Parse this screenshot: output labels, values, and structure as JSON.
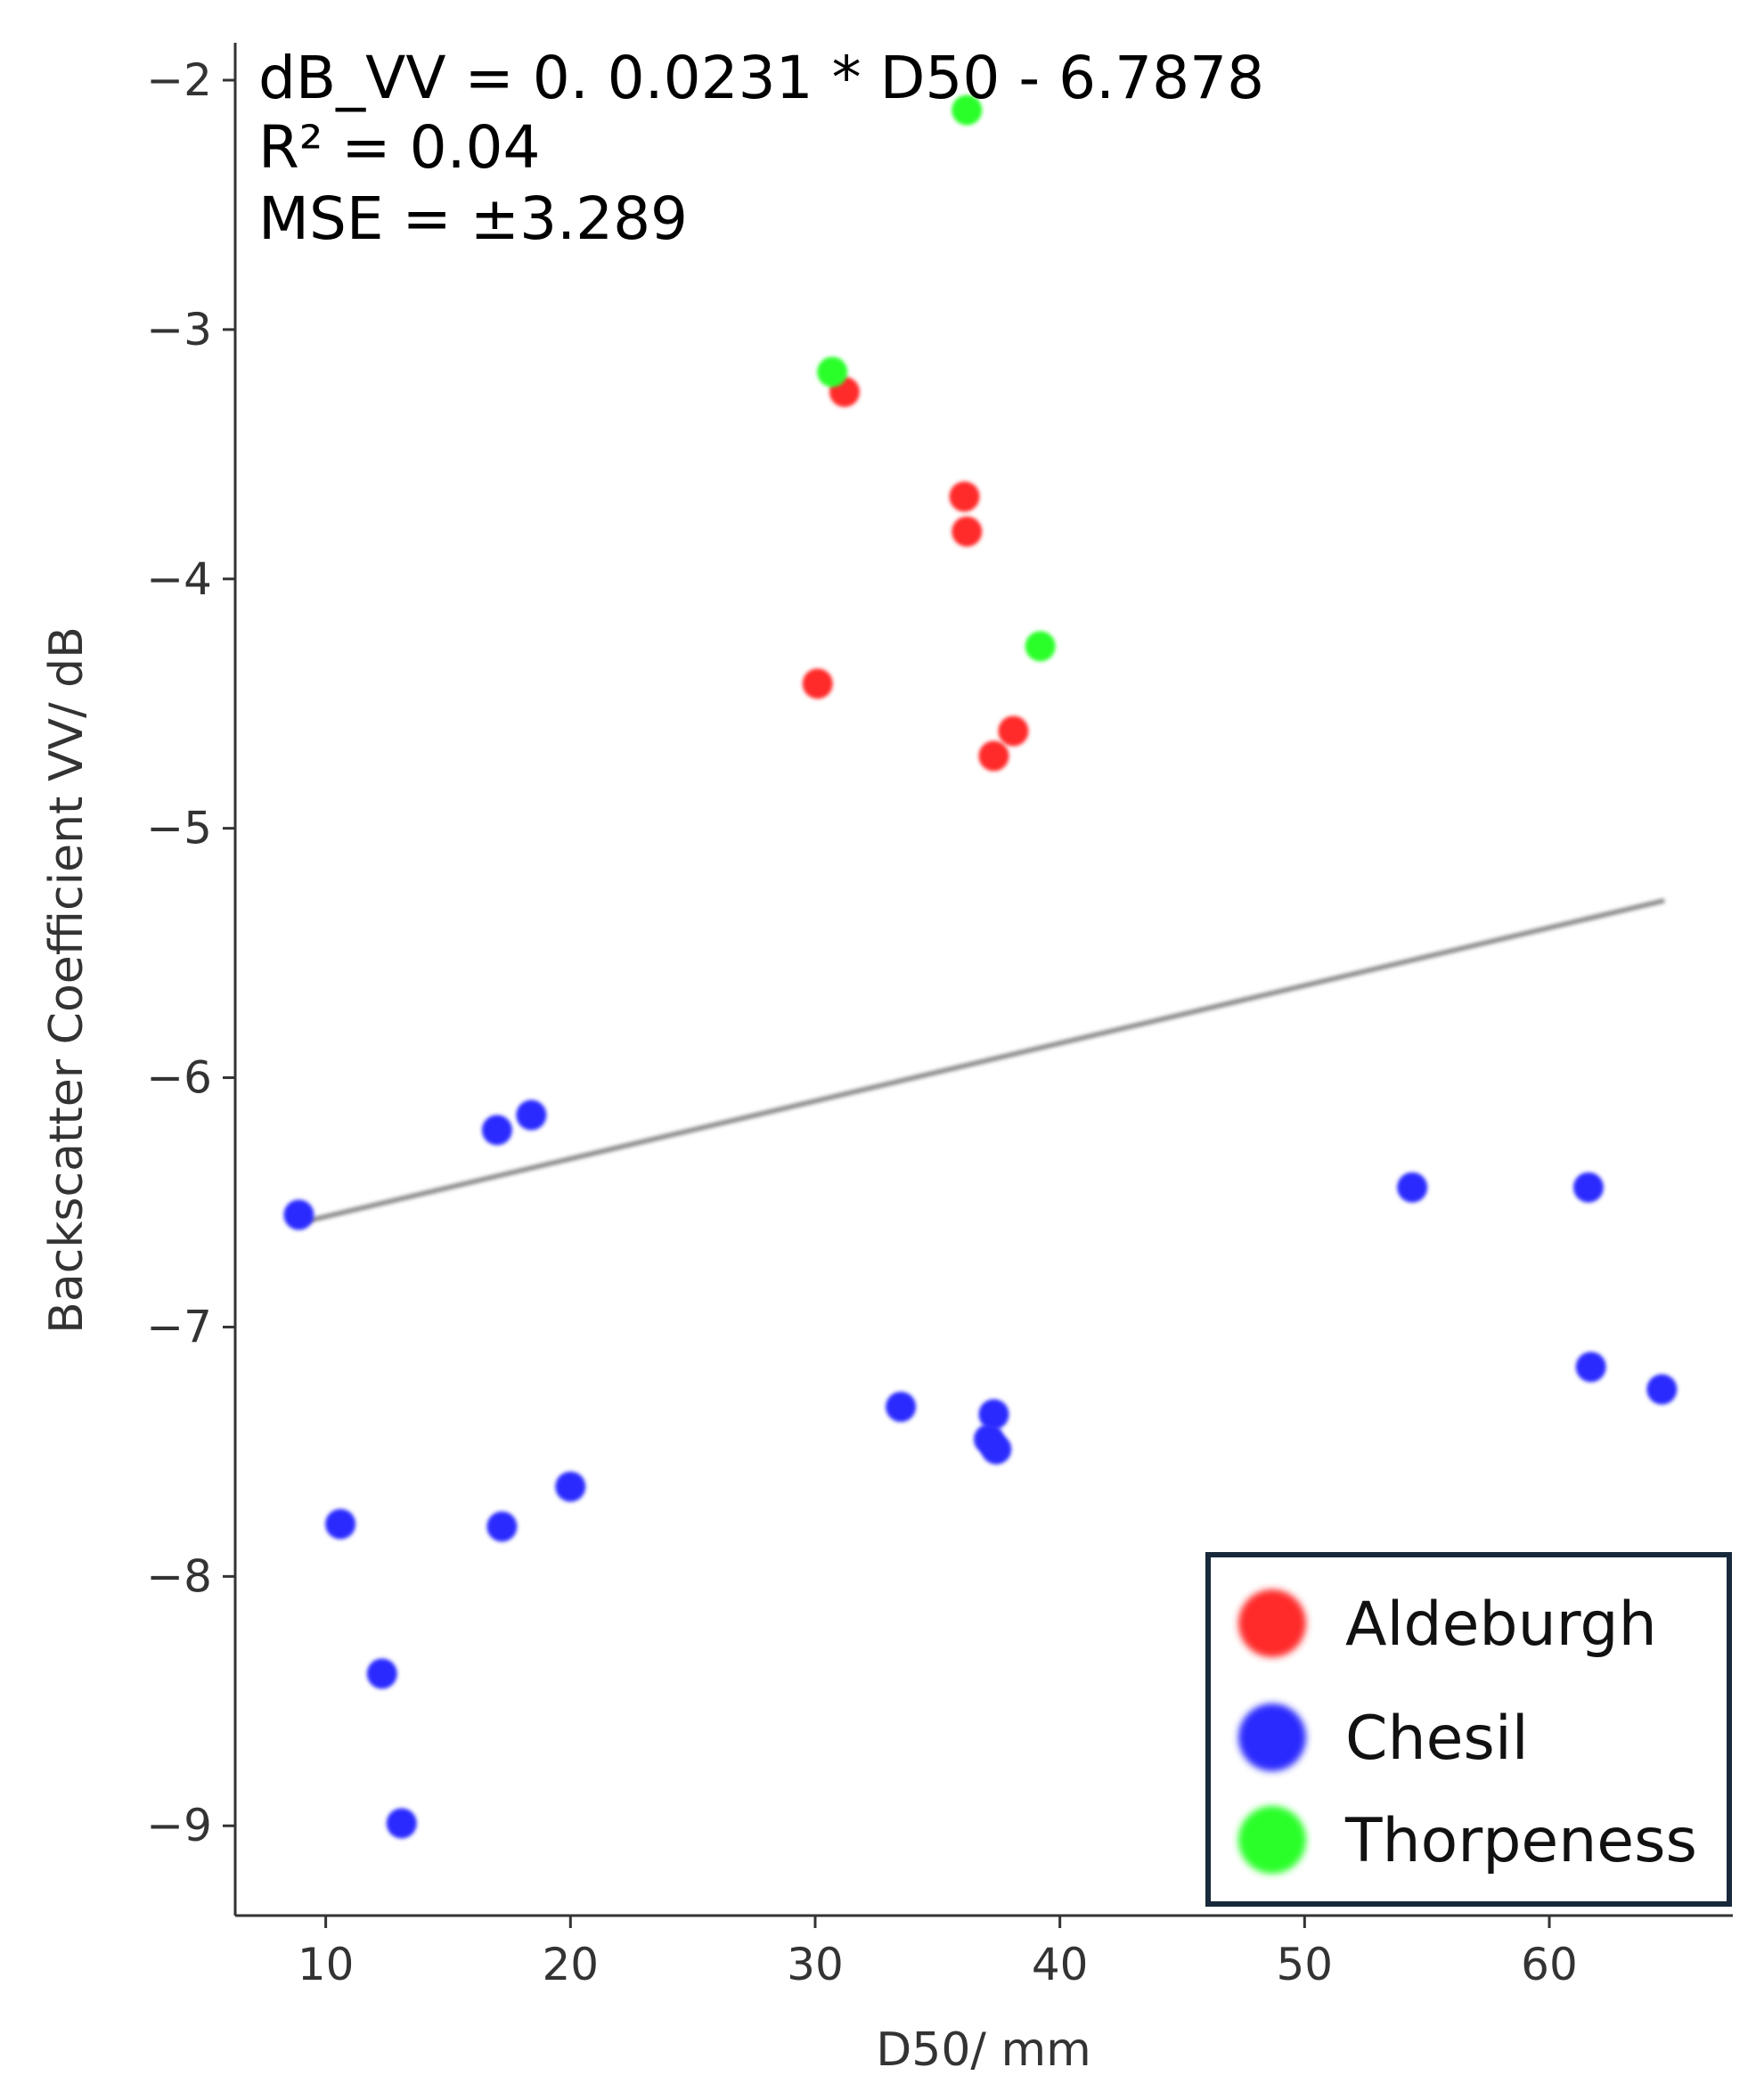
{
  "chart_data": {
    "type": "scatter",
    "xlabel": "D50/ mm",
    "ylabel": "Backscatter Coefficient VV/ dB",
    "xlim": [
      6.3,
      67.5
    ],
    "ylim": [
      -9.36,
      -1.85
    ],
    "x_ticks": [
      10,
      20,
      30,
      40,
      50,
      60
    ],
    "y_ticks": [
      -2,
      -3,
      -4,
      -5,
      -6,
      -7,
      -8,
      -9
    ],
    "x_tick_labels": [
      "10",
      "20",
      "30",
      "40",
      "50",
      "60"
    ],
    "y_tick_labels": [
      "−2",
      "−3",
      "−4",
      "−5",
      "−6",
      "−7",
      "−8",
      "−9"
    ],
    "grid": false,
    "annotation": [
      "dB_VV = 0. 0.0231 * D50 - 6.7878",
      "R² = 0.04",
      "MSE = ±3.289"
    ],
    "trendline": {
      "x": [
        9.0,
        64.7
      ],
      "y": [
        -6.58,
        -5.29
      ],
      "color": "#808080"
    },
    "legend_position": "bottom-right",
    "series": [
      {
        "name": "Aldeburgh",
        "color": "#ff2a2a",
        "points": [
          [
            31.2,
            -3.25
          ],
          [
            36.1,
            -3.67
          ],
          [
            36.2,
            -3.81
          ],
          [
            30.1,
            -4.42
          ],
          [
            38.1,
            -4.61
          ],
          [
            37.3,
            -4.71
          ]
        ]
      },
      {
        "name": "Chesil",
        "color": "#2a2aff",
        "points": [
          [
            8.9,
            -6.55
          ],
          [
            17.0,
            -6.21
          ],
          [
            18.4,
            -6.15
          ],
          [
            54.4,
            -6.44
          ],
          [
            61.6,
            -6.44
          ],
          [
            61.7,
            -7.16
          ],
          [
            64.6,
            -7.25
          ],
          [
            33.5,
            -7.32
          ],
          [
            37.3,
            -7.35
          ],
          [
            37.1,
            -7.45
          ],
          [
            37.4,
            -7.49
          ],
          [
            20.0,
            -7.64
          ],
          [
            10.6,
            -7.79
          ],
          [
            17.2,
            -7.8
          ],
          [
            12.3,
            -8.39
          ],
          [
            13.1,
            -8.99
          ]
        ]
      },
      {
        "name": "Thorpeness",
        "color": "#2aff2a",
        "points": [
          [
            36.2,
            -2.12
          ],
          [
            30.7,
            -3.17
          ],
          [
            39.2,
            -4.27
          ]
        ]
      }
    ]
  }
}
